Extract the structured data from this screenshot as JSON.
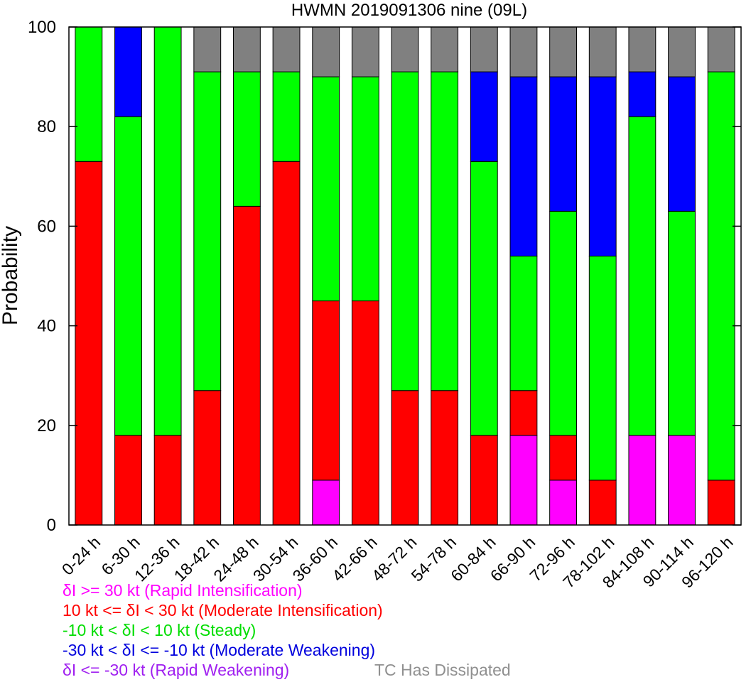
{
  "chart_data": {
    "type": "bar",
    "stacked": true,
    "title": "HWMN 2019091306 nine (09L)",
    "ylabel": "Probability",
    "xlabel": "",
    "ylim": [
      0,
      100
    ],
    "yticks": [
      0,
      20,
      40,
      60,
      80,
      100
    ],
    "categories": [
      "0-24 h",
      "6-30 h",
      "12-36 h",
      "18-42 h",
      "24-48 h",
      "30-54 h",
      "36-60 h",
      "42-66 h",
      "48-72 h",
      "54-78 h",
      "60-84 h",
      "66-90 h",
      "72-96 h",
      "78-102 h",
      "84-108 h",
      "90-114 h",
      "96-120 h"
    ],
    "series": [
      {
        "key": "ri",
        "color": "#ff00ff",
        "values": [
          0,
          0,
          0,
          0,
          0,
          0,
          9,
          0,
          0,
          0,
          0,
          18,
          9,
          0,
          18,
          18,
          0
        ]
      },
      {
        "key": "mi",
        "color": "#ff0000",
        "values": [
          73,
          18,
          18,
          27,
          64,
          73,
          36,
          45,
          27,
          27,
          18,
          9,
          9,
          9,
          0,
          0,
          9
        ]
      },
      {
        "key": "steady",
        "color": "#00ff00",
        "values": [
          27,
          64,
          82,
          64,
          27,
          18,
          45,
          45,
          64,
          64,
          55,
          27,
          45,
          45,
          64,
          45,
          82
        ]
      },
      {
        "key": "mw",
        "color": "#0000ff",
        "values": [
          0,
          18,
          0,
          0,
          0,
          0,
          0,
          0,
          0,
          0,
          18,
          36,
          27,
          36,
          9,
          27,
          0
        ]
      },
      {
        "key": "rw",
        "color": "#a020f0",
        "values": [
          0,
          0,
          0,
          0,
          0,
          0,
          0,
          0,
          0,
          0,
          0,
          0,
          0,
          0,
          0,
          0,
          0
        ]
      },
      {
        "key": "dissipated",
        "color": "#808080",
        "values": [
          0,
          0,
          0,
          9,
          9,
          9,
          10,
          10,
          9,
          9,
          9,
          10,
          10,
          10,
          9,
          10,
          9
        ]
      }
    ],
    "grid": false,
    "legend_placement": "bottom"
  },
  "legend": {
    "ri": {
      "pre": "",
      "delta": "δ",
      "post": "I >= 30 kt (Rapid Intensification)",
      "color": "#ff00ff"
    },
    "mi": {
      "pre": "10 kt <= ",
      "delta": "δ",
      "post": "I < 30 kt (Moderate Intensification)",
      "color": "#ff0000"
    },
    "steady": {
      "pre": "-10 kt < ",
      "delta": "δ",
      "post": "I < 10 kt (Steady)",
      "color": "#00dd00"
    },
    "mw": {
      "pre": "-30 kt < ",
      "delta": "δ",
      "post": "I <= -10 kt (Moderate Weakening)",
      "color": "#0000dd"
    },
    "rw": {
      "pre": "",
      "delta": "δ",
      "post": "I <= -30 kt (Rapid Weakening)",
      "color": "#a020f0"
    },
    "dissipated": {
      "pre": "",
      "delta": "",
      "post": "TC Has Dissipated",
      "color": "#909090"
    }
  }
}
